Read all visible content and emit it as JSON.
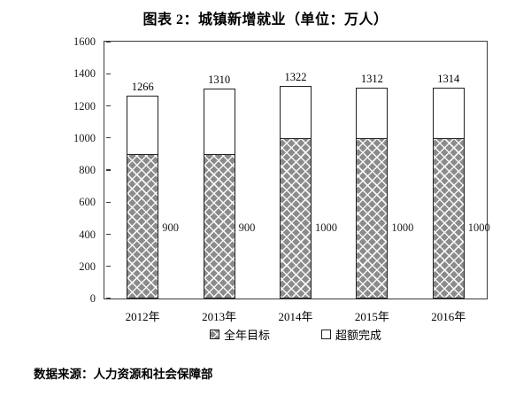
{
  "title": "图表 2：城镇新增就业（单位：万人）",
  "source_note": "数据来源：人力资源和社会保障部",
  "chart_data": {
    "type": "bar",
    "stacked": true,
    "title": "图表 2：城镇新增就业（单位：万人）",
    "categories": [
      "2012年",
      "2013年",
      "2014年",
      "2015年",
      "2016年"
    ],
    "series": [
      {
        "name": "全年目标",
        "style": "crosshatch-gray",
        "values": [
          900,
          900,
          1000,
          1000,
          1000
        ]
      },
      {
        "name": "超额完成",
        "style": "white",
        "values": [
          366,
          410,
          322,
          312,
          314
        ]
      }
    ],
    "totals": [
      1266,
      1310,
      1322,
      1312,
      1314
    ],
    "total_labels": [
      "1266",
      "1310",
      "1322",
      "1312",
      "1314"
    ],
    "target_labels": [
      "900",
      "900",
      "1000",
      "1000",
      "1000"
    ],
    "xlabel": "",
    "ylabel": "",
    "ylim": [
      0,
      1600
    ],
    "yticks": [
      0,
      200,
      400,
      600,
      800,
      1000,
      1200,
      1400,
      1600
    ],
    "grid": false,
    "legend_position": "bottom",
    "legend": [
      "全年目标",
      "超额完成"
    ]
  },
  "colors": {
    "background": "#ffffff",
    "text": "#000000",
    "axis": "#3a3a3a",
    "bar_fill_gray": "#8b8b8b",
    "bar_hatch_line": "#ffffff",
    "bar_border": "#1f1f1f",
    "overfill_fill": "#ffffff"
  }
}
